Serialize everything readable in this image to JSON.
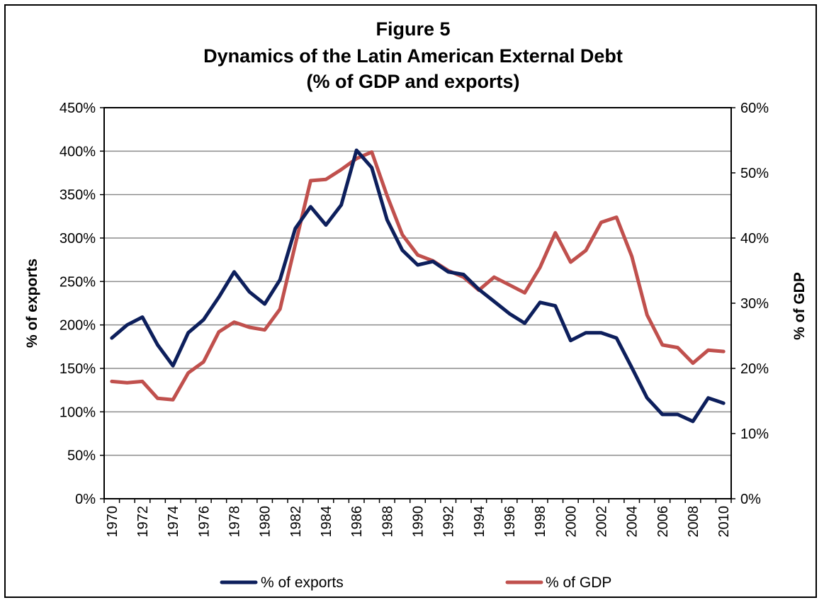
{
  "chart_data": {
    "type": "line",
    "title": "Figure 5",
    "subtitle_lines": [
      "Dynamics of the Latin American External Debt",
      "(% of GDP and exports)"
    ],
    "ylabel_left": "% of exports",
    "ylabel_right": "% of GDP",
    "ylim_left": [
      0,
      450
    ],
    "ylim_right": [
      0,
      60
    ],
    "yticks_left": [
      "0%",
      "50%",
      "100%",
      "150%",
      "200%",
      "250%",
      "300%",
      "350%",
      "400%",
      "450%"
    ],
    "yticks_right": [
      "0%",
      "10%",
      "20%",
      "30%",
      "40%",
      "50%",
      "60%"
    ],
    "x_tick_labels": [
      "1970",
      "1972",
      "1974",
      "1976",
      "1978",
      "1980",
      "1982",
      "1984",
      "1986",
      "1988",
      "1990",
      "1992",
      "1994",
      "1996",
      "1998",
      "2000",
      "2002",
      "2004",
      "2006",
      "2008",
      "2010"
    ],
    "grid": true,
    "legend_position": "bottom",
    "x": [
      1970,
      1971,
      1972,
      1973,
      1974,
      1975,
      1976,
      1977,
      1978,
      1979,
      1980,
      1981,
      1982,
      1983,
      1984,
      1985,
      1986,
      1987,
      1988,
      1989,
      1990,
      1991,
      1992,
      1993,
      1994,
      1995,
      1996,
      1997,
      1998,
      1999,
      2000,
      2001,
      2002,
      2003,
      2004,
      2005,
      2006,
      2007,
      2008,
      2009,
      2010
    ],
    "series": [
      {
        "name": "% of exports",
        "axis": "left",
        "color": "#0d1f5c",
        "values": [
          185,
          200,
          209,
          177,
          153,
          191,
          206,
          232,
          261,
          238,
          224,
          252,
          311,
          336,
          315,
          338,
          401,
          381,
          321,
          286,
          269,
          273,
          261,
          258,
          241,
          227,
          213,
          202,
          226,
          222,
          182,
          191,
          191,
          185,
          151,
          116,
          97,
          97,
          89,
          116,
          110
        ]
      },
      {
        "name": "% of GDP",
        "axis": "right",
        "color": "#c0504d",
        "values": [
          18.0,
          17.8,
          18.0,
          15.4,
          15.2,
          19.3,
          21.0,
          25.6,
          27.1,
          26.3,
          25.9,
          29.1,
          39.0,
          48.8,
          49.0,
          50.5,
          52.2,
          53.2,
          46.5,
          40.5,
          37.4,
          36.5,
          35.0,
          34.0,
          32.0,
          34.0,
          32.8,
          31.6,
          35.5,
          40.8,
          36.3,
          38.1,
          42.4,
          43.2,
          37.2,
          28.2,
          23.6,
          23.2,
          20.8,
          22.8,
          22.6
        ]
      }
    ]
  }
}
